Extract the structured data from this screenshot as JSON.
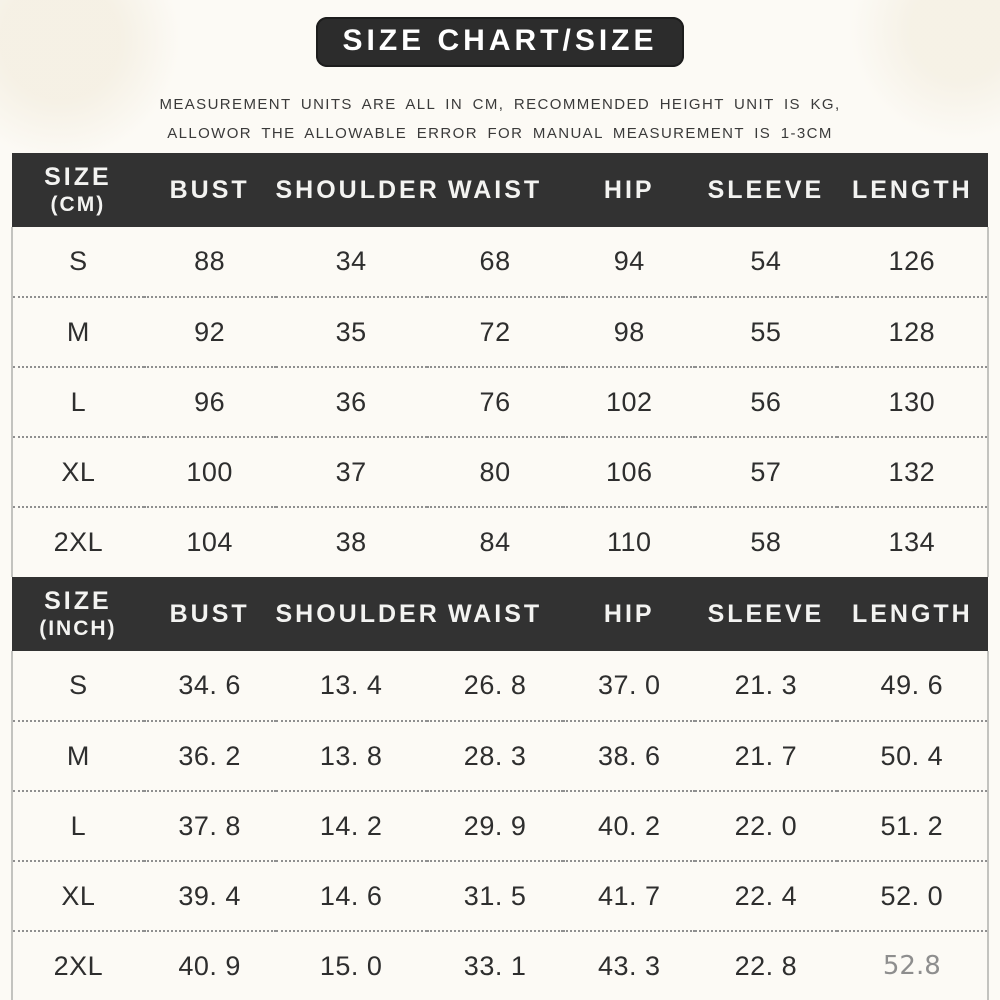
{
  "title": "SIZE CHART/SIZE",
  "subtitle": {
    "line1": "MEASUREMENT UNITS ARE ALL IN CM, RECOMMENDED HEIGHT UNIT IS KG,",
    "line2": "ALLOWOR  THE ALLOWABLE ERROR FOR MANUAL MEASUREMENT IS 1-3CM"
  },
  "colors": {
    "background": "#fcfaf5",
    "badge_bg": "#2c2c2c",
    "header_bg": "#323232",
    "header_text": "#f3f3f1",
    "body_text": "#2e2e2e",
    "dotted_divider": "#8f8f8f",
    "light_value_text": "#8e8e8e"
  },
  "chart_data": [
    {
      "type": "table",
      "title": "SIZE (CM)",
      "unit_label": "(CM)",
      "columns": [
        "SIZE",
        "BUST",
        "SHOULDER",
        "WAIST",
        "HIP",
        "SLEEVE",
        "LENGTH"
      ],
      "rows": [
        [
          "S",
          "88",
          "34",
          "68",
          "94",
          "54",
          "126"
        ],
        [
          "M",
          "92",
          "35",
          "72",
          "98",
          "55",
          "128"
        ],
        [
          "L",
          "96",
          "36",
          "76",
          "102",
          "56",
          "130"
        ],
        [
          "XL",
          "100",
          "37",
          "80",
          "106",
          "57",
          "132"
        ],
        [
          "2XL",
          "104",
          "38",
          "84",
          "110",
          "58",
          "134"
        ]
      ]
    },
    {
      "type": "table",
      "title": "SIZE (INCH)",
      "unit_label": "(INCH)",
      "columns": [
        "SIZE",
        "BUST",
        "SHOULDER",
        "WAIST",
        "HIP",
        "SLEEVE",
        "LENGTH"
      ],
      "rows": [
        [
          "S",
          "34. 6",
          "13. 4",
          "26. 8",
          "37. 0",
          "21. 3",
          "49. 6"
        ],
        [
          "M",
          "36. 2",
          "13. 8",
          "28. 3",
          "38. 6",
          "21. 7",
          "50. 4"
        ],
        [
          "L",
          "37. 8",
          "14. 2",
          "29. 9",
          "40. 2",
          "22. 0",
          "51. 2"
        ],
        [
          "XL",
          "39. 4",
          "14. 6",
          "31. 5",
          "41. 7",
          "22. 4",
          "52. 0"
        ],
        [
          "2XL",
          "40. 9",
          "15. 0",
          "33. 1",
          "43. 3",
          "22. 8",
          "52.8"
        ]
      ]
    }
  ]
}
